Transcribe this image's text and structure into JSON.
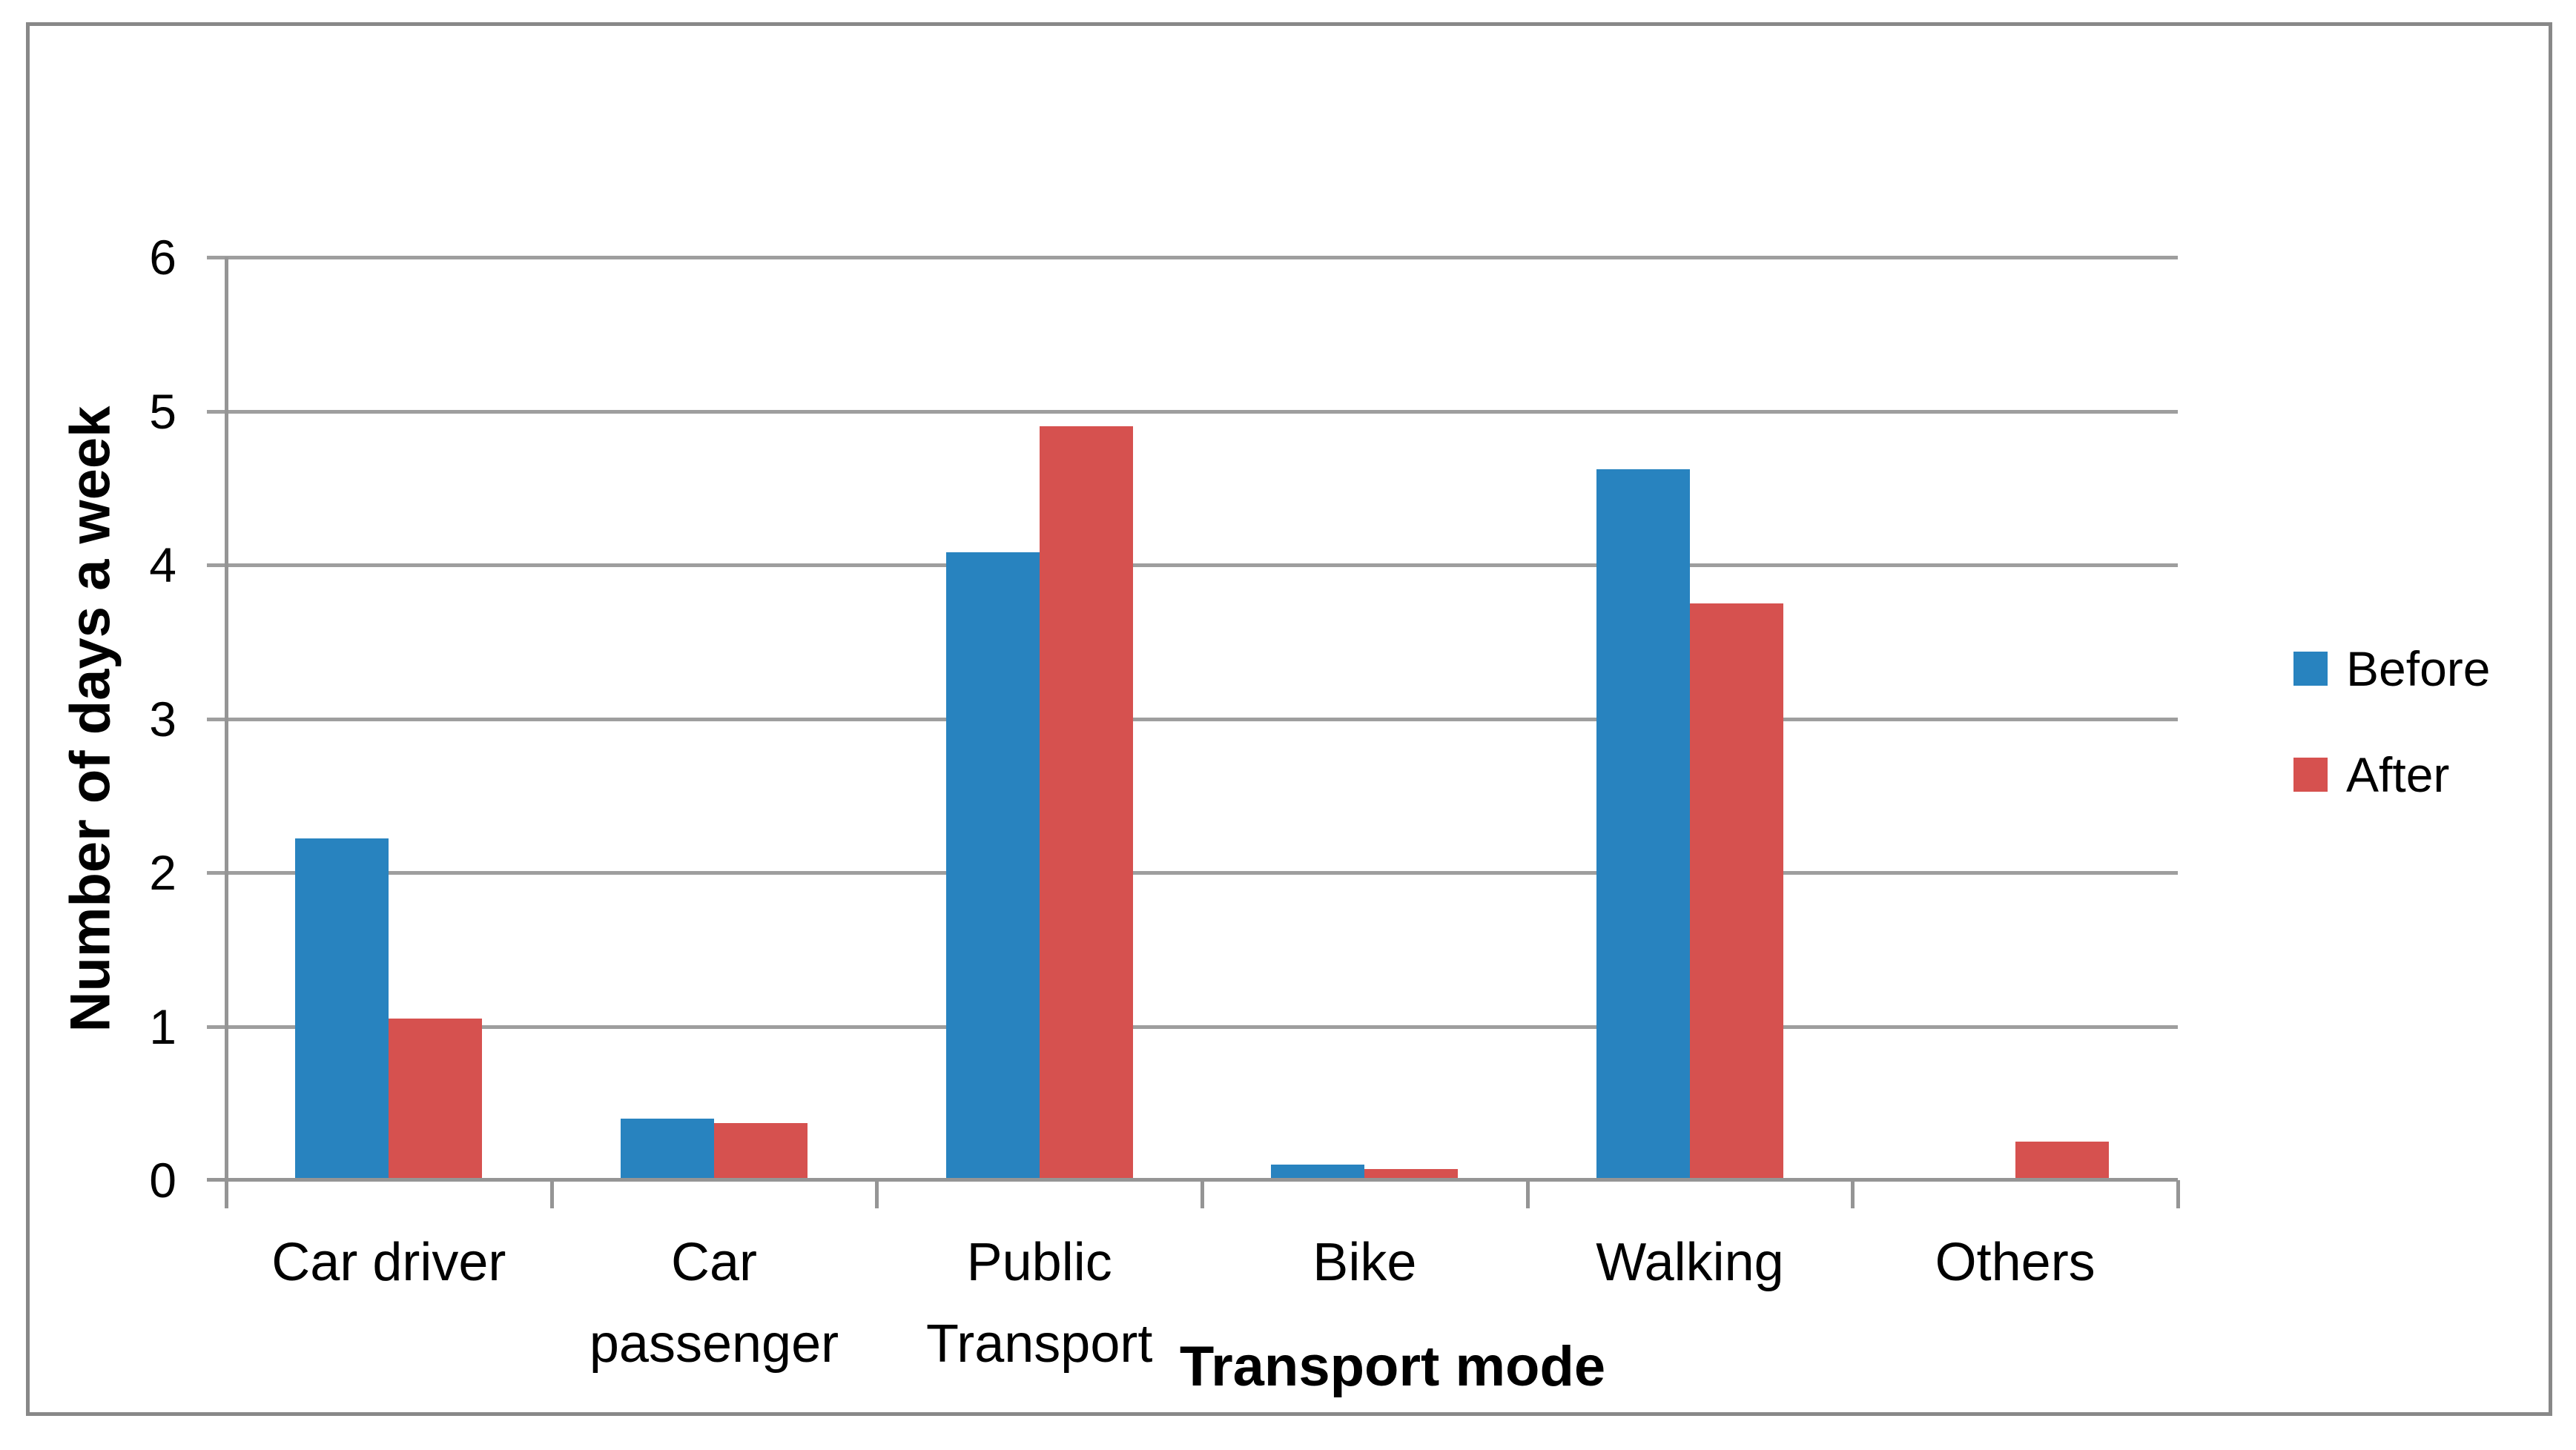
{
  "chart_data": {
    "type": "bar",
    "categories": [
      "Car driver",
      "Car passenger",
      "Public Transport",
      "Bike",
      "Walking",
      "Others"
    ],
    "category_label_lines": [
      [
        "Car driver"
      ],
      [
        "Car",
        "passenger"
      ],
      [
        "Public",
        "Transport"
      ],
      [
        "Bike"
      ],
      [
        "Walking"
      ],
      [
        "Others"
      ]
    ],
    "series": [
      {
        "name": "Before",
        "color": "#2883BF",
        "values": [
          2.22,
          0.4,
          4.08,
          0.1,
          4.62,
          0
        ]
      },
      {
        "name": "After",
        "color": "#D6514F",
        "values": [
          1.05,
          0.37,
          4.9,
          0.07,
          3.75,
          0.25
        ]
      }
    ],
    "xlabel": "Transport mode",
    "ylabel": "Number of days a week",
    "ylim": [
      0,
      6
    ],
    "yticks": [
      0,
      1,
      2,
      3,
      4,
      5,
      6
    ],
    "grid": true,
    "legend_position": "right-middle"
  },
  "legend": {
    "items": [
      {
        "label": "Before",
        "color": "#2883BF"
      },
      {
        "label": "After",
        "color": "#D6514F"
      }
    ]
  },
  "colors": {
    "background": "#FFFFFF",
    "figure_border": "#888888",
    "axis": "#959595",
    "gridline": "#9E9E9E",
    "text": "#000000"
  }
}
